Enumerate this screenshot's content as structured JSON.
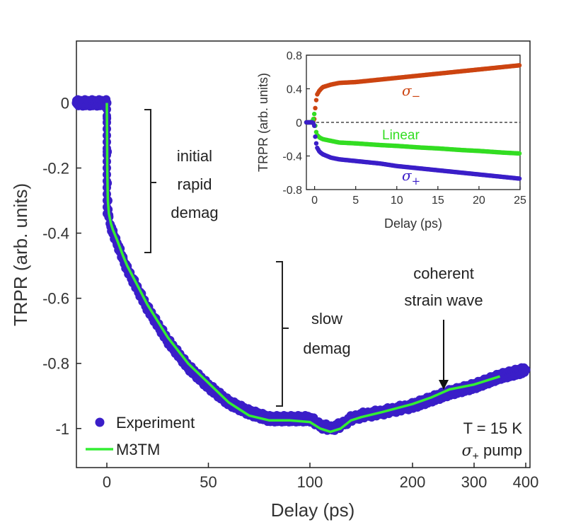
{
  "chart_data": [
    {
      "type": "scatter",
      "xlabel": "Delay (ps)",
      "ylabel": "TRPR (arb. units)",
      "ylim": [
        -1.12,
        0.19
      ],
      "x_axis_note": "piecewise scale: linear 0-100 ps, compressed 100-400 ps",
      "x_ticks": [
        {
          "value": 0,
          "label": "0"
        },
        {
          "value": 50,
          "label": "50"
        },
        {
          "value": 100,
          "label": "100"
        },
        {
          "value": 200,
          "label": "200"
        },
        {
          "value": 300,
          "label": "300"
        },
        {
          "value": 400,
          "label": "400"
        }
      ],
      "y_ticks": [
        {
          "value": 0,
          "label": "0"
        },
        {
          "value": -0.2,
          "label": "-0.2"
        },
        {
          "value": -0.4,
          "label": "-0.4"
        },
        {
          "value": -0.6,
          "label": "-0.6"
        },
        {
          "value": -0.8,
          "label": "-0.8"
        },
        {
          "value": -1,
          "label": "-1"
        }
      ],
      "series": [
        {
          "name": "Experiment",
          "color": "#3a1ec8",
          "marker": "circle",
          "x": [
            -15,
            -10,
            -5,
            -2,
            0,
            0.2,
            0.5,
            1,
            2,
            3,
            5,
            8,
            10,
            15,
            20,
            25,
            30,
            40,
            50,
            60,
            70,
            80,
            90,
            100,
            110,
            120,
            130,
            140,
            150,
            170,
            200,
            230,
            260,
            300,
            350,
            400
          ],
          "y": [
            0,
            0,
            0,
            0,
            0,
            -0.15,
            -0.3,
            -0.35,
            -0.38,
            -0.4,
            -0.43,
            -0.48,
            -0.51,
            -0.57,
            -0.63,
            -0.68,
            -0.73,
            -0.81,
            -0.87,
            -0.92,
            -0.95,
            -0.97,
            -0.97,
            -0.97,
            -0.99,
            -1.0,
            -0.99,
            -0.97,
            -0.96,
            -0.95,
            -0.93,
            -0.91,
            -0.89,
            -0.87,
            -0.84,
            -0.82
          ]
        },
        {
          "name": "M3TM",
          "color": "#33ee33",
          "marker": "line",
          "x": [
            0,
            0.2,
            0.5,
            1,
            2,
            3,
            5,
            8,
            10,
            15,
            20,
            25,
            30,
            40,
            50,
            60,
            70,
            80,
            90,
            100,
            110,
            120,
            130,
            140,
            150,
            170,
            200,
            230,
            260,
            300,
            350
          ],
          "y": [
            0,
            -0.2,
            -0.3,
            -0.34,
            -0.37,
            -0.39,
            -0.42,
            -0.47,
            -0.5,
            -0.56,
            -0.62,
            -0.67,
            -0.72,
            -0.8,
            -0.86,
            -0.92,
            -0.96,
            -0.975,
            -0.975,
            -0.98,
            -1.0,
            -1.01,
            -1.0,
            -0.975,
            -0.965,
            -0.95,
            -0.925,
            -0.905,
            -0.88,
            -0.865,
            -0.84
          ]
        }
      ],
      "legend": {
        "position": "bottom-left",
        "entries": [
          "Experiment",
          "M3TM"
        ]
      },
      "annotations": [
        {
          "text": [
            "initial",
            "rapid",
            "demag"
          ],
          "style": "bracket",
          "range_y": [
            0,
            -0.45
          ]
        },
        {
          "text": [
            "slow",
            "demag"
          ],
          "style": "bracket",
          "range_y": [
            -0.47,
            -0.92
          ]
        },
        {
          "text": [
            "coherent",
            "strain wave"
          ],
          "style": "arrow",
          "points_to_x": 230
        },
        {
          "text": [
            "T = 15 K"
          ],
          "style": "label",
          "position": "bottom-right"
        },
        {
          "text": [
            "σ",
            "+",
            " pump"
          ],
          "style": "label",
          "position": "bottom-right"
        }
      ]
    },
    {
      "type": "scatter",
      "title": "",
      "xlabel": "Delay (ps)",
      "ylabel": "TRPR (arb. units)",
      "xlim": [
        -1,
        25
      ],
      "ylim": [
        -0.8,
        0.8
      ],
      "x_ticks": [
        {
          "value": 0,
          "label": "0"
        },
        {
          "value": 5,
          "label": "5"
        },
        {
          "value": 10,
          "label": "10"
        },
        {
          "value": 15,
          "label": "15"
        },
        {
          "value": 20,
          "label": "20"
        },
        {
          "value": 25,
          "label": "25"
        }
      ],
      "y_ticks": [
        {
          "value": 0.8,
          "label": "0.8"
        },
        {
          "value": 0.4,
          "label": "0.4"
        },
        {
          "value": 0,
          "label": "0"
        },
        {
          "value": -0.4,
          "label": "-0.4"
        },
        {
          "value": -0.8,
          "label": "-0.8"
        }
      ],
      "zero_line": "dashed",
      "series": [
        {
          "name": "σ−",
          "label_parts": [
            "σ",
            "−"
          ],
          "color": "#cc4411",
          "x": [
            -1,
            -0.5,
            -0.2,
            0,
            0.1,
            0.3,
            0.6,
            1,
            2,
            3,
            5,
            8,
            10,
            13,
            15,
            18,
            20,
            23,
            25
          ],
          "y": [
            0,
            0,
            0,
            0.05,
            0.2,
            0.33,
            0.38,
            0.42,
            0.45,
            0.47,
            0.48,
            0.51,
            0.53,
            0.56,
            0.58,
            0.61,
            0.63,
            0.66,
            0.68
          ]
        },
        {
          "name": "Linear",
          "label_parts": [
            "Linear"
          ],
          "color": "#33dd22",
          "x": [
            -1,
            -0.5,
            -0.2,
            0,
            0.1,
            0.3,
            0.6,
            1,
            2,
            3,
            5,
            8,
            10,
            13,
            15,
            18,
            20,
            23,
            25
          ],
          "y": [
            0,
            0,
            0.02,
            0.12,
            -0.08,
            -0.15,
            -0.18,
            -0.2,
            -0.22,
            -0.24,
            -0.25,
            -0.27,
            -0.28,
            -0.3,
            -0.31,
            -0.33,
            -0.34,
            -0.36,
            -0.37
          ]
        },
        {
          "name": "σ+",
          "label_parts": [
            "σ",
            "+"
          ],
          "color": "#3a1ec8",
          "x": [
            -1,
            -0.5,
            -0.2,
            0,
            0.1,
            0.3,
            0.6,
            1,
            2,
            3,
            5,
            8,
            10,
            13,
            15,
            18,
            20,
            23,
            25
          ],
          "y": [
            0,
            0,
            0,
            -0.05,
            -0.2,
            -0.3,
            -0.35,
            -0.38,
            -0.42,
            -0.44,
            -0.46,
            -0.49,
            -0.52,
            -0.55,
            -0.57,
            -0.6,
            -0.62,
            -0.65,
            -0.67
          ]
        }
      ]
    }
  ]
}
